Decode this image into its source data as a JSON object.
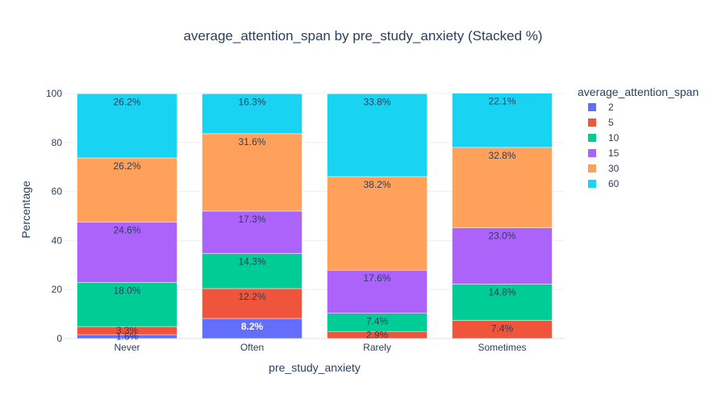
{
  "chart_data": {
    "type": "bar",
    "stacked": true,
    "title": "average_attention_span by pre_study_anxiety (Stacked %)",
    "xlabel": "pre_study_anxiety",
    "ylabel": "Percentage",
    "ylim": [
      0,
      100
    ],
    "yticks": [
      "0",
      "20",
      "40",
      "60",
      "80",
      "100"
    ],
    "categories": [
      "Never",
      "Often",
      "Rarely",
      "Sometimes"
    ],
    "grid": true,
    "legend": {
      "title": "average_attention_span",
      "placement": "right"
    },
    "series": [
      {
        "name": "2",
        "color": "#636efa",
        "values": [
          1.6,
          8.2,
          0.0,
          0.0
        ],
        "labels": [
          "1.6%",
          "8.2%",
          "",
          ""
        ]
      },
      {
        "name": "5",
        "color": "#ef553b",
        "values": [
          3.3,
          12.2,
          2.9,
          7.4
        ],
        "labels": [
          "3.3%",
          "12.2%",
          "2.9%",
          "7.4%"
        ]
      },
      {
        "name": "10",
        "color": "#00cc96",
        "values": [
          18.0,
          14.3,
          7.4,
          14.8
        ],
        "labels": [
          "18.0%",
          "14.3%",
          "7.4%",
          "14.8%"
        ]
      },
      {
        "name": "15",
        "color": "#ab63fa",
        "values": [
          24.6,
          17.3,
          17.6,
          23.0
        ],
        "labels": [
          "24.6%",
          "17.3%",
          "17.6%",
          "23.0%"
        ]
      },
      {
        "name": "30",
        "color": "#ffa15a",
        "values": [
          26.2,
          31.6,
          38.2,
          32.8
        ],
        "labels": [
          "26.2%",
          "31.6%",
          "38.2%",
          "32.8%"
        ]
      },
      {
        "name": "60",
        "color": "#19d3f3",
        "values": [
          26.2,
          16.3,
          33.8,
          22.1
        ],
        "labels": [
          "26.2%",
          "16.3%",
          "33.8%",
          "22.1%"
        ]
      }
    ]
  }
}
